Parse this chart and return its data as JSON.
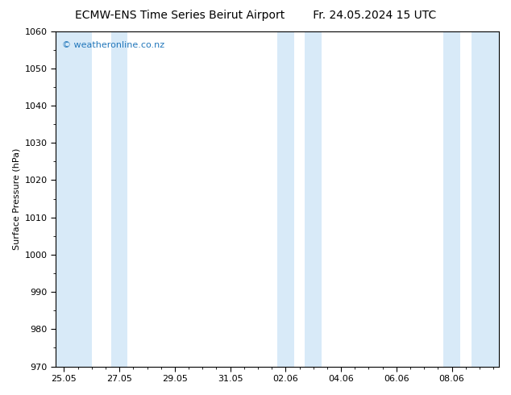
{
  "title_left": "ECMW-ENS Time Series Beirut Airport",
  "title_right": "Fr. 24.05.2024 15 UTC",
  "ylabel": "Surface Pressure (hPa)",
  "ylim": [
    970,
    1060
  ],
  "ytick_major": 10,
  "ytick_minor": 5,
  "background_color": "#ffffff",
  "plot_bg_color": "#ffffff",
  "watermark": "© weatheronline.co.nz",
  "watermark_color": "#2277bb",
  "shade_color": "#d8eaf8",
  "title_fontsize": 10,
  "axis_fontsize": 8,
  "watermark_fontsize": 8,
  "x_tick_labels": [
    "25.05",
    "27.05",
    "29.05",
    "31.05",
    "02.06",
    "04.06",
    "06.06",
    "08.06"
  ],
  "x_tick_positions": [
    0,
    2,
    4,
    6,
    8,
    10,
    12,
    14
  ],
  "xlim": [
    -0.3,
    15.7
  ],
  "shaded_x": [
    [
      -0.3,
      1.0
    ],
    [
      1.7,
      2.3
    ],
    [
      7.7,
      8.3
    ],
    [
      8.7,
      9.3
    ],
    [
      13.7,
      14.3
    ],
    [
      14.7,
      15.7
    ]
  ]
}
